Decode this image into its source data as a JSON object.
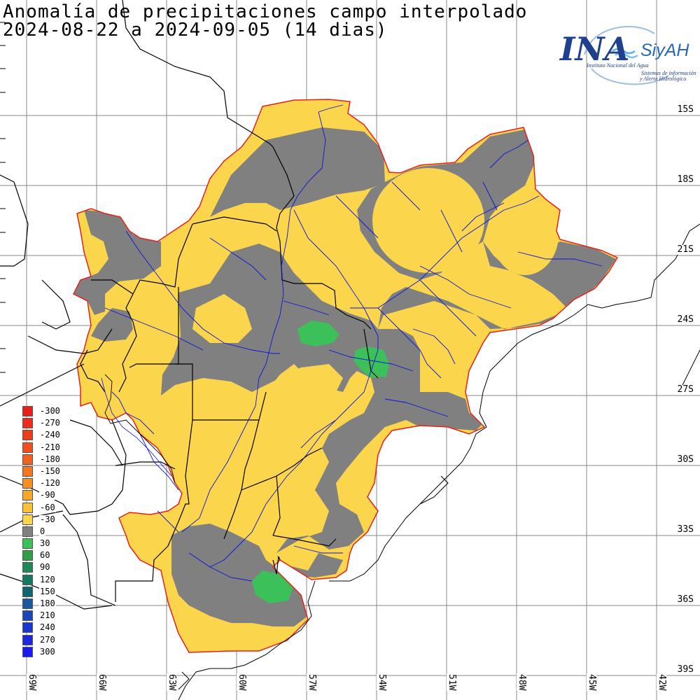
{
  "title": {
    "line1": "Anomalía de precipitaciones campo interpolado",
    "line2": "2024-08-22 a 2024-09-05 (14 dias)"
  },
  "logo": {
    "main": "INA",
    "brand": "SiyAH",
    "institute": "Instituto Nacional del Agua",
    "subtitle_line1": "Sistemas de información",
    "subtitle_line2": "y Alerta Hidrológico"
  },
  "latitude_labels": [
    "15S",
    "18S",
    "21S",
    "24S",
    "27S",
    "30S",
    "33S",
    "36S",
    "39S"
  ],
  "longitude_labels": [
    "69W",
    "66W",
    "63W",
    "60W",
    "57W",
    "54W",
    "51W",
    "48W",
    "45W",
    "42W"
  ],
  "legend": [
    {
      "label": "-300",
      "color": "#e8201a"
    },
    {
      "label": "-270",
      "color": "#ea2e1a"
    },
    {
      "label": "-240",
      "color": "#ec3d1b"
    },
    {
      "label": "-210",
      "color": "#ee4f1c"
    },
    {
      "label": "-180",
      "color": "#f0621e"
    },
    {
      "label": "-150",
      "color": "#f27821"
    },
    {
      "label": "-120",
      "color": "#f48e26"
    },
    {
      "label": "-90",
      "color": "#f6a72d"
    },
    {
      "label": "-60",
      "color": "#f8c13a"
    },
    {
      "label": "-30",
      "color": "#fbd64c"
    },
    {
      "label": "0",
      "color": "#808080"
    },
    {
      "label": "30",
      "color": "#3cc05a"
    },
    {
      "label": "60",
      "color": "#2f9e47"
    },
    {
      "label": "90",
      "color": "#1f8a57"
    },
    {
      "label": "120",
      "color": "#167763"
    },
    {
      "label": "150",
      "color": "#10656f"
    },
    {
      "label": "180",
      "color": "#1b56a0"
    },
    {
      "label": "210",
      "color": "#1c45b8"
    },
    {
      "label": "240",
      "color": "#1c35cc"
    },
    {
      "label": "270",
      "color": "#1c27de"
    },
    {
      "label": "300",
      "color": "#1a1aee"
    }
  ],
  "colors": {
    "dry_anomaly": "#fbd64c",
    "normal": "#808080",
    "wet_anomaly": "#3cc05a",
    "basin_outline": "#e8201a",
    "rivers": "#0a14d8",
    "borders": "#000000",
    "grid": "#888888"
  }
}
